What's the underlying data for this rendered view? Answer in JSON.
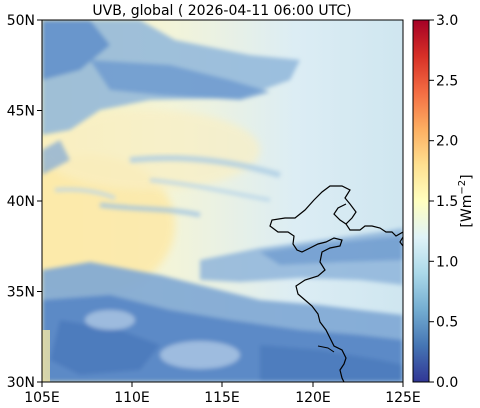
{
  "title": "UVB, global ( 2026-04-11 06:00 UTC)",
  "map": {
    "x_ticks": [
      "105E",
      "110E",
      "115E",
      "120E",
      "125E"
    ],
    "y_ticks": [
      "50N",
      "45N",
      "40N",
      "35N",
      "30N"
    ],
    "lon_range": [
      105,
      125
    ],
    "lat_range": [
      30,
      50
    ]
  },
  "colorbar": {
    "label": "[Wm",
    "label_sup": "−2",
    "label_end": "]",
    "ticks": [
      "3.0",
      "2.5",
      "2.0",
      "1.5",
      "1.0",
      "0.5",
      "0.0"
    ],
    "range": [
      0,
      3
    ],
    "colormap": [
      "#313695",
      "#4575b4",
      "#74add1",
      "#abd9e9",
      "#e0f3f8",
      "#ffffbf",
      "#fee090",
      "#fdae61",
      "#f46d43",
      "#d73027",
      "#a50026"
    ]
  },
  "chart_data": {
    "type": "heatmap",
    "title": "UVB, global ( 2026-04-11 06:00 UTC)",
    "x_ticks": [
      "105E",
      "110E",
      "115E",
      "120E",
      "125E"
    ],
    "y_ticks": [
      "30N",
      "35N",
      "40N",
      "45N",
      "50N"
    ],
    "xlim": [
      105,
      125
    ],
    "ylim": [
      30,
      50
    ],
    "colorbar_label": "[Wm−2]",
    "colorbar_range": [
      0,
      3.0
    ],
    "value_range_shown": [
      0.3,
      1.6
    ],
    "clear_sky_max_region": "west, around 36-40N (about 1.5-1.6)",
    "cloud_bands": [
      "north-west 45-49N",
      "central-east 36-38N",
      "south 30-34N"
    ]
  }
}
